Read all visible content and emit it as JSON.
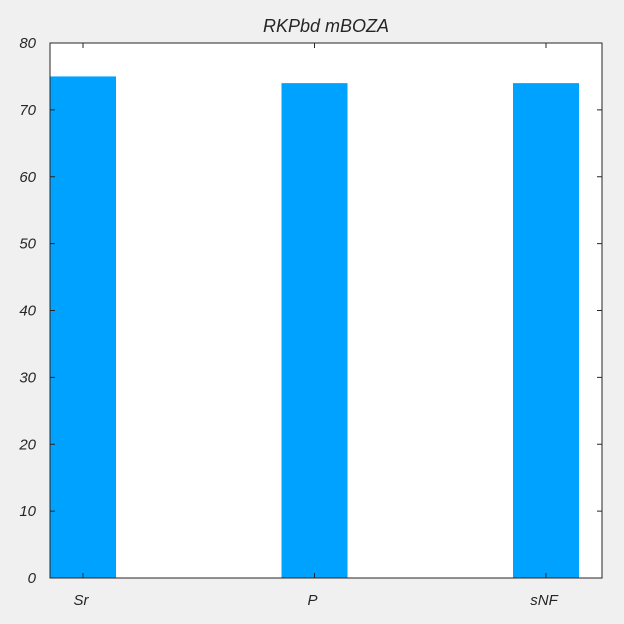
{
  "chart_data": {
    "type": "bar",
    "title": "RKPbd mBOZA",
    "xlabel": "",
    "ylabel": "",
    "categories": [
      "Sr",
      "P",
      "sNF"
    ],
    "values": [
      75,
      74,
      74
    ],
    "ylim": [
      0,
      80
    ],
    "yticks": [
      0,
      10,
      20,
      30,
      40,
      50,
      60,
      70,
      80
    ],
    "grid": false,
    "legend": "none",
    "bar_color": "#00a2ff",
    "plot_background": "#ffffff",
    "figure_background": "#f0f0f0"
  }
}
